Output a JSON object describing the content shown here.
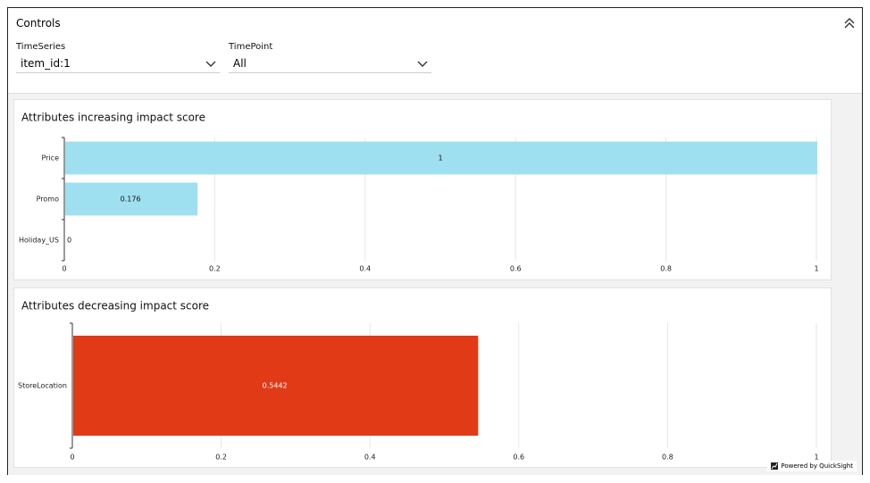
{
  "controls": {
    "title": "Controls",
    "filters": [
      {
        "label": "TimeSeries",
        "value": "item_id:1"
      },
      {
        "label": "TimePoint",
        "value": "All"
      }
    ]
  },
  "chart_data": [
    {
      "type": "bar",
      "title": "Attributes increasing impact score",
      "categories": [
        "Price",
        "Promo",
        "Holiday_US"
      ],
      "values": [
        1,
        0.176,
        0
      ],
      "color": "#9ee0f0",
      "xlim": [
        0,
        1
      ],
      "xticks": [
        0,
        0.2,
        0.4,
        0.6,
        0.8,
        1
      ],
      "grid": true
    },
    {
      "type": "bar",
      "title": "Attributes decreasing impact score",
      "categories": [
        "StoreLocation"
      ],
      "values": [
        0.5442
      ],
      "color": "#e03a17",
      "xlim": [
        0,
        1
      ],
      "xticks": [
        0,
        0.2,
        0.4,
        0.6,
        0.8,
        1
      ],
      "grid": true
    }
  ],
  "footer": "Powered by QuickSight"
}
